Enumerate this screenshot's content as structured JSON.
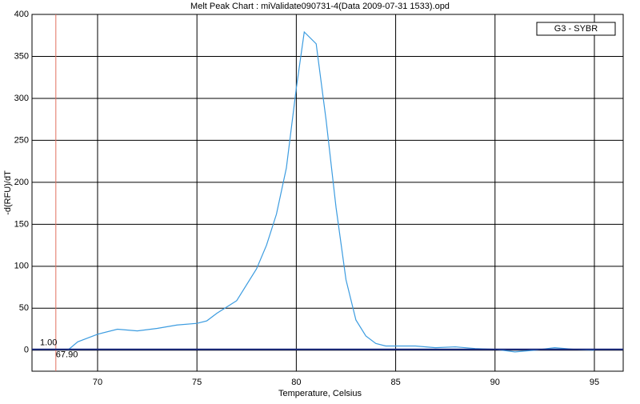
{
  "chart_data": {
    "type": "line",
    "title": "Melt Peak Chart : miValidate090731-4(Data 2009-07-31 1533).opd",
    "x_label": "Temperature, Celsius",
    "y_label": "-d(RFU)/dT",
    "x": [
      68.5,
      69,
      70,
      71,
      72,
      73,
      74,
      75,
      75.5,
      76,
      77,
      78,
      78.5,
      79,
      79.5,
      80,
      80.4,
      81,
      81.5,
      82,
      82.5,
      83,
      83.5,
      84,
      84.5,
      85,
      86,
      87,
      88,
      89,
      90,
      91,
      92,
      93,
      94,
      95
    ],
    "series": [
      {
        "name": "G3 - SYBR",
        "color": "#3c9ce0",
        "values": [
          0,
          10,
          19,
          25,
          23,
          26,
          30,
          32,
          35,
          44,
          59,
          97,
          125,
          162,
          217,
          312,
          379,
          365,
          274,
          170,
          84,
          36,
          17,
          8,
          5,
          5,
          5,
          3,
          4,
          2,
          1,
          -2,
          0,
          3,
          1,
          0
        ]
      }
    ],
    "threshold_x": {
      "value": 67.9,
      "label": "67.90"
    },
    "threshold_y": {
      "value": 1,
      "label": "1.00"
    },
    "threshold_x_color": "#e07060",
    "threshold_y_color": "#1a2a80",
    "xlim": [
      66.7,
      96.45
    ],
    "xticks": [
      70,
      75,
      80,
      85,
      90,
      95
    ],
    "ylim": [
      -25,
      400
    ],
    "yticks": [
      0,
      50,
      100,
      150,
      200,
      250,
      300,
      350,
      400
    ],
    "grid": true,
    "legend": "upper right"
  }
}
